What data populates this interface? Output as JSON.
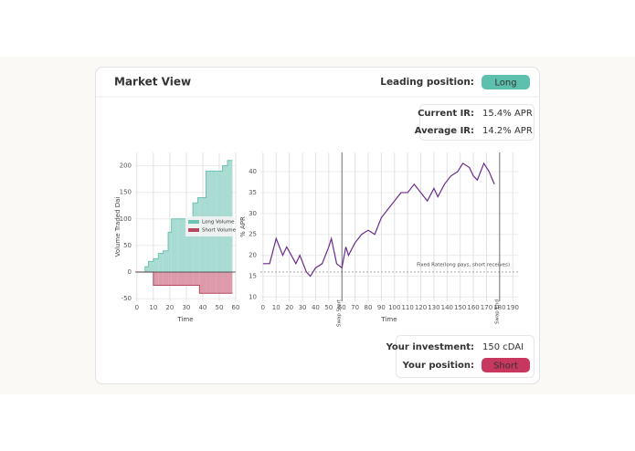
{
  "header": {
    "title": "Market View",
    "leading_label": "Leading position:",
    "leading_value": "Long"
  },
  "rates": {
    "current_label": "Current IR:",
    "current_value": "15.4% APR",
    "average_label": "Average IR:",
    "average_value": "14.2% APR"
  },
  "footer": {
    "investment_label": "Your investment:",
    "investment_value": "150 cDAI",
    "position_label": "Your position:",
    "position_value": "Short"
  },
  "chart_data": [
    {
      "type": "step-area",
      "xlabel": "Time",
      "ylabel": "Volume Traded Dai",
      "x": [
        0,
        5,
        7,
        10,
        13,
        16,
        19,
        21,
        25,
        30,
        34,
        37,
        38,
        42,
        45,
        48,
        52,
        55,
        58
      ],
      "series": [
        {
          "name": "Long Volume",
          "color": "#a8dcd3",
          "values": [
            0,
            10,
            20,
            25,
            35,
            40,
            75,
            100,
            100,
            100,
            130,
            140,
            140,
            190,
            190,
            190,
            200,
            210,
            210
          ]
        },
        {
          "name": "Short Volume",
          "color": "#dc9aaa",
          "values": [
            0,
            0,
            0,
            -25,
            -25,
            -25,
            -25,
            -25,
            -25,
            -25,
            -25,
            -25,
            -40,
            -40,
            -40,
            -40,
            -40,
            -40,
            -40
          ]
        }
      ],
      "xlim": [
        -1,
        60
      ],
      "ylim": [
        -55,
        225
      ],
      "xticks": [
        0,
        10,
        20,
        30,
        40,
        50,
        60
      ],
      "yticks": [
        -50,
        0,
        50,
        100,
        150,
        200
      ],
      "grid": true
    },
    {
      "type": "line",
      "xlabel": "Time",
      "ylabel": "% APR",
      "x": [
        0,
        5,
        10,
        15,
        18,
        25,
        28,
        33,
        36,
        40,
        45,
        50,
        52,
        56,
        60,
        63,
        65,
        70,
        75,
        80,
        85,
        90,
        95,
        100,
        105,
        110,
        115,
        120,
        125,
        130,
        133,
        138,
        143,
        148,
        152,
        157,
        160,
        163,
        168,
        172,
        176
      ],
      "series": [
        {
          "name": "APR",
          "color": "#6a2c8a",
          "values": [
            18,
            18,
            24,
            20,
            22,
            18,
            20,
            16,
            15,
            17,
            18,
            22,
            24,
            18,
            17,
            22,
            20,
            23,
            25,
            26,
            25,
            29,
            31,
            33,
            35,
            35,
            37,
            35,
            33,
            36,
            34,
            37,
            39,
            40,
            42,
            41,
            39,
            38,
            42,
            40,
            37
          ]
        }
      ],
      "annotations": [
        {
          "text": "Fixed Rate(long pays, short receives)",
          "y": 16
        },
        {
          "text": "Swap Start",
          "x": 60
        },
        {
          "text": "Swap End",
          "x": 180
        }
      ],
      "xlim": [
        -2,
        194
      ],
      "ylim": [
        9,
        44.6
      ],
      "xticks": [
        0,
        10,
        20,
        30,
        40,
        50,
        60,
        70,
        80,
        90,
        100,
        110,
        120,
        130,
        140,
        150,
        160,
        170,
        180,
        190
      ],
      "yticks": [
        10,
        15,
        20,
        25,
        30,
        35,
        40
      ],
      "grid": true
    }
  ]
}
